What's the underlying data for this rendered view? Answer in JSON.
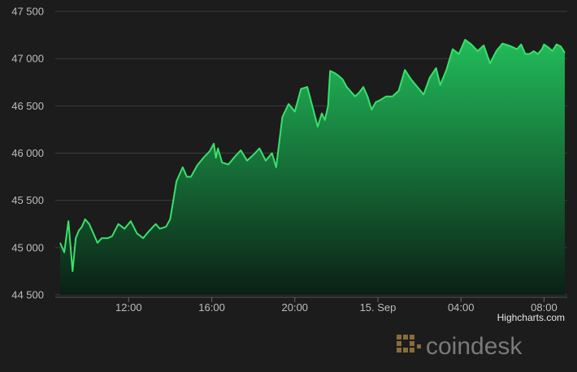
{
  "chart_data": {
    "type": "area",
    "title": "",
    "xlabel": "",
    "ylabel": "",
    "y_ticks": [
      "44 500",
      "45 000",
      "45 500",
      "46 000",
      "46 500",
      "47 000",
      "47 500"
    ],
    "y_tick_values": [
      44500,
      45000,
      45500,
      46000,
      46500,
      47000,
      47500
    ],
    "ylim": [
      44500,
      47500
    ],
    "x_ticks": [
      "12:00",
      "16:00",
      "20:00",
      "15. Sep",
      "04:00",
      "08:00"
    ],
    "x_tick_hours": [
      12,
      16,
      20,
      24,
      28,
      32
    ],
    "xlim_hours": [
      8.7,
      33.0
    ],
    "grid": true,
    "legend": "none",
    "colors": {
      "line": "#37e26b",
      "fill_top": "#22c55e",
      "fill_bottom": "#0a2014",
      "grid": "#3c3c3c",
      "background": "#1c1c1c"
    },
    "series": [
      {
        "x_hours": [
          8.7,
          8.9,
          9.1,
          9.3,
          9.45,
          9.6,
          9.75,
          9.9,
          10.1,
          10.3,
          10.5,
          10.7,
          11.0,
          11.2,
          11.5,
          11.8,
          12.1,
          12.4,
          12.7,
          13.0,
          13.3,
          13.5,
          13.8,
          14.0,
          14.3,
          14.6,
          14.8,
          15.0,
          15.3,
          15.6,
          15.9,
          16.1,
          16.2,
          16.3,
          16.5,
          16.8,
          17.1,
          17.4,
          17.7,
          18.0,
          18.3,
          18.6,
          18.9,
          19.1,
          19.4,
          19.7,
          20.0,
          20.3,
          20.6,
          20.9,
          21.1,
          21.3,
          21.45,
          21.6,
          21.7,
          21.9,
          22.1,
          22.3,
          22.5,
          22.7,
          22.9,
          23.1,
          23.3,
          23.5,
          23.7,
          23.9,
          24.1,
          24.4,
          24.7,
          25.0,
          25.3,
          25.6,
          25.9,
          26.2,
          26.5,
          26.8,
          27.0,
          27.3,
          27.6,
          27.9,
          28.2,
          28.5,
          28.8,
          29.1,
          29.4,
          29.7,
          30.0,
          30.3,
          30.5,
          30.7,
          30.9,
          31.1,
          31.3,
          31.5,
          31.7,
          31.9,
          32.0,
          32.2,
          32.4,
          32.6,
          32.8,
          33.0
        ],
        "values": [
          45050,
          44950,
          45280,
          44750,
          45100,
          45180,
          45220,
          45300,
          45250,
          45150,
          45050,
          45100,
          45100,
          45120,
          45250,
          45200,
          45280,
          45150,
          45100,
          45180,
          45250,
          45200,
          45220,
          45300,
          45700,
          45850,
          45750,
          45750,
          45870,
          45950,
          46020,
          46100,
          45950,
          46050,
          45900,
          45880,
          45960,
          46030,
          45920,
          45980,
          46050,
          45920,
          46000,
          45850,
          46380,
          46520,
          46440,
          46680,
          46700,
          46450,
          46280,
          46420,
          46350,
          46500,
          46870,
          46850,
          46820,
          46780,
          46700,
          46650,
          46600,
          46640,
          46700,
          46600,
          46460,
          46540,
          46560,
          46600,
          46600,
          46660,
          46880,
          46780,
          46700,
          46620,
          46800,
          46900,
          46720,
          46880,
          47100,
          47050,
          47200,
          47150,
          47080,
          47140,
          46950,
          47080,
          47160,
          47140,
          47120,
          47100,
          47150,
          47050,
          47050,
          47080,
          47050,
          47100,
          47150,
          47120,
          47080,
          47150,
          47130,
          47060
        ]
      }
    ]
  },
  "credits": {
    "label": "Highcharts.com"
  },
  "watermark": {
    "text": "coindesk"
  }
}
